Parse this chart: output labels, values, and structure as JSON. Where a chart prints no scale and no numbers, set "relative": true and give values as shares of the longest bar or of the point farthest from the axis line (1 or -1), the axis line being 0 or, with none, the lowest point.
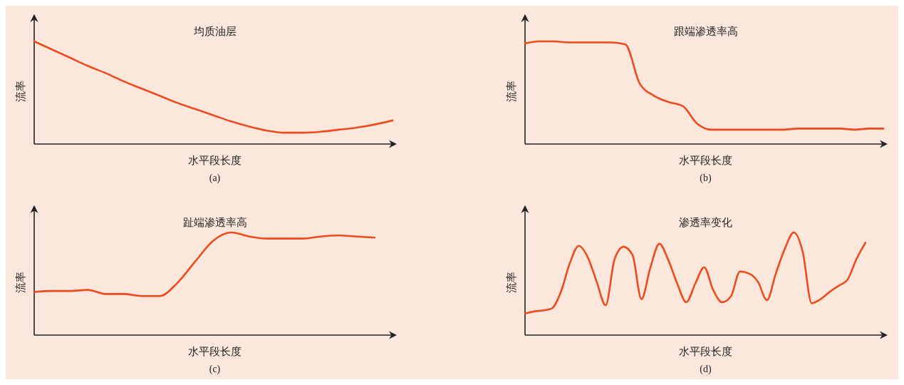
{
  "chart_data": [
    {
      "type": "line",
      "title": "均质油层",
      "xlabel": "水平段长度",
      "ylabel": "流率",
      "annotations": [
        "(a)"
      ],
      "relative": true,
      "categories": [
        null,
        null,
        null,
        null,
        null,
        null,
        null,
        null,
        null,
        null,
        null,
        null,
        null,
        null,
        null,
        null,
        null,
        null,
        null,
        null,
        null
      ],
      "series": [
        {
          "color": "#ee4b1c",
          "values": [
            1.0,
            0.92,
            0.84,
            0.76,
            0.69,
            0.61,
            0.54,
            0.47,
            0.4,
            0.34,
            0.28,
            0.22,
            0.17,
            0.13,
            0.11,
            0.11,
            0.12,
            0.14,
            0.16,
            0.19,
            0.23
          ]
        }
      ]
    },
    {
      "type": "line",
      "title": "跟端渗透率高",
      "xlabel": "水平段长度",
      "ylabel": "流率",
      "annotations": [
        "(b)"
      ],
      "relative": true,
      "categories": [
        null,
        null,
        null,
        null,
        null,
        null,
        null,
        null,
        null,
        null,
        null,
        null,
        null,
        null,
        null,
        null,
        null,
        null,
        null,
        null,
        null,
        null,
        null,
        null,
        null,
        null
      ],
      "series": [
        {
          "color": "#ee4b1c",
          "values": [
            0.98,
            1.0,
            1.0,
            0.99,
            0.99,
            0.99,
            0.99,
            0.97,
            0.59,
            0.47,
            0.41,
            0.37,
            0.2,
            0.14,
            0.14,
            0.14,
            0.14,
            0.14,
            0.14,
            0.15,
            0.15,
            0.15,
            0.15,
            0.14,
            0.15,
            0.15
          ]
        }
      ]
    },
    {
      "type": "line",
      "title": "趾端渗透率高",
      "xlabel": "水平段长度",
      "ylabel": "流率",
      "annotations": [
        "(c)"
      ],
      "relative": true,
      "categories": [
        null,
        null,
        null,
        null,
        null,
        null,
        null,
        null,
        null,
        null,
        null,
        null,
        null,
        null,
        null,
        null,
        null,
        null,
        null,
        null,
        null
      ],
      "series": [
        {
          "color": "#ee4b1c",
          "values": [
            0.42,
            0.43,
            0.43,
            0.44,
            0.4,
            0.4,
            0.38,
            0.38,
            0.51,
            0.72,
            0.92,
            1.0,
            0.96,
            0.94,
            0.94,
            0.94,
            0.96,
            0.97,
            0.96,
            0.95,
            null
          ]
        }
      ]
    },
    {
      "type": "line",
      "title": "渗透率变化",
      "xlabel": "水平段长度",
      "ylabel": "流率",
      "annotations": [
        "(d)"
      ],
      "relative": true,
      "categories": [
        null,
        null,
        null,
        null,
        null,
        null,
        null,
        null,
        null,
        null,
        null,
        null,
        null,
        null,
        null,
        null,
        null,
        null,
        null,
        null,
        null,
        null,
        null,
        null,
        null,
        null,
        null,
        null,
        null,
        null,
        null,
        null,
        null,
        null,
        null,
        null,
        null,
        null,
        null,
        null,
        null
      ],
      "series": [
        {
          "color": "#ee4b1c",
          "values": [
            0.21,
            0.23,
            0.24,
            0.26,
            0.42,
            0.7,
            0.87,
            0.76,
            0.52,
            0.29,
            0.74,
            0.86,
            0.78,
            0.35,
            0.66,
            0.89,
            0.73,
            0.5,
            0.32,
            0.5,
            0.66,
            0.44,
            0.32,
            0.38,
            0.62,
            0.6,
            0.52,
            0.34,
            0.6,
            0.84,
            1.0,
            0.81,
            0.31,
            0.35,
            0.42,
            0.48,
            0.54,
            0.74,
            0.9,
            null,
            null
          ]
        }
      ]
    }
  ]
}
